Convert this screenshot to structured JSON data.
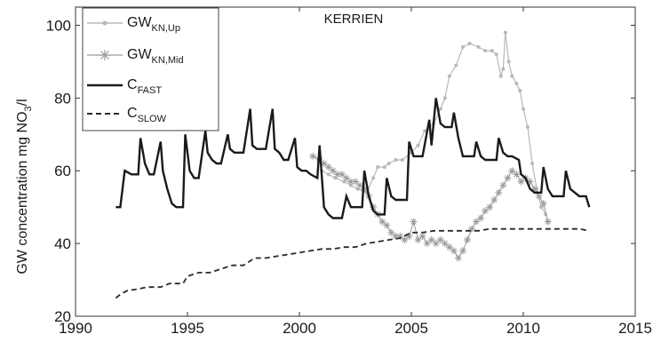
{
  "chart_data": {
    "type": "line",
    "title": "KERRIEN",
    "xlabel": "",
    "ylabel": "GW concentration mg NO3/l",
    "ylabel_parts": {
      "main": "GW concentration mg NO",
      "sub": "3",
      "tail": "/l"
    },
    "xlim": [
      1990,
      2015
    ],
    "ylim": [
      20,
      105
    ],
    "x_ticks": [
      1990,
      1995,
      2000,
      2005,
      2010,
      2015
    ],
    "y_ticks": [
      20,
      40,
      60,
      80,
      100
    ],
    "grid": false,
    "legend_position": "top-left",
    "legend": [
      {
        "base": "GW",
        "sub": "KN,Up"
      },
      {
        "base": "GW",
        "sub": "KN,Mid"
      },
      {
        "base": "C",
        "sub": "FAST"
      },
      {
        "base": "C",
        "sub": "SLOW"
      }
    ],
    "colors": {
      "gw_up": "#b8b8b8",
      "gw_mid": "#9a9a9a",
      "c_fast": "#1a1a1a",
      "c_slow": "#2a2a2a",
      "axis": "#333333"
    },
    "series": [
      {
        "key": "gw_up",
        "style": "dot-line",
        "x": [
          2001.0,
          2001.3,
          2001.6,
          2002.0,
          2002.3,
          2002.6,
          2003.0,
          2003.3,
          2003.5,
          2003.8,
          2004.0,
          2004.3,
          2004.6,
          2005.0,
          2005.3,
          2005.6,
          2006.0,
          2006.3,
          2006.5,
          2006.7,
          2007.0,
          2007.3,
          2007.6,
          2008.0,
          2008.3,
          2008.6,
          2008.8,
          2009.0,
          2009.1,
          2009.2,
          2009.35,
          2009.5,
          2009.7,
          2009.85,
          2010.0,
          2010.2,
          2010.4,
          2010.6,
          2010.8,
          2011.0
        ],
        "y": [
          60,
          59,
          58,
          57,
          56,
          55,
          54,
          58,
          61,
          61,
          62,
          63,
          63,
          65,
          67,
          71,
          73,
          77,
          80,
          86,
          89,
          94,
          95,
          94,
          93,
          93,
          92,
          86,
          88,
          98,
          90,
          86,
          84,
          82,
          77,
          72,
          62,
          55,
          50,
          48
        ]
      },
      {
        "key": "gw_mid",
        "style": "star-line",
        "x": [
          2000.6,
          2000.9,
          2001.1,
          2001.3,
          2001.5,
          2001.7,
          2001.9,
          2002.1,
          2002.3,
          2002.5,
          2002.7,
          2002.9,
          2003.1,
          2003.3,
          2003.5,
          2003.7,
          2003.9,
          2004.1,
          2004.3,
          2004.5,
          2004.7,
          2004.9,
          2005.1,
          2005.3,
          2005.5,
          2005.7,
          2005.9,
          2006.1,
          2006.3,
          2006.5,
          2006.7,
          2006.9,
          2007.1,
          2007.3,
          2007.5,
          2007.7,
          2007.9,
          2008.1,
          2008.3,
          2008.5,
          2008.7,
          2008.9,
          2009.1,
          2009.3,
          2009.5,
          2009.7,
          2009.9,
          2010.1,
          2010.3,
          2010.5,
          2010.7,
          2010.9,
          2011.1
        ],
        "y": [
          64,
          63,
          62,
          61,
          60,
          59,
          59,
          58,
          57,
          57,
          56,
          55,
          53,
          50,
          48,
          46,
          45,
          43,
          42,
          42,
          41,
          42,
          46,
          41,
          42,
          40,
          41,
          40,
          41,
          40,
          39,
          38,
          36,
          38,
          41,
          44,
          46,
          47,
          49,
          50,
          52,
          54,
          56,
          58,
          60,
          59,
          57,
          58,
          57,
          55,
          53,
          51,
          46
        ]
      },
      {
        "key": "c_fast",
        "style": "solid",
        "x": [
          1991.8,
          1992.0,
          1992.2,
          1992.5,
          1992.8,
          1992.9,
          1993.1,
          1993.3,
          1993.5,
          1993.8,
          1993.9,
          1994.1,
          1994.3,
          1994.5,
          1994.8,
          1994.9,
          1995.1,
          1995.3,
          1995.5,
          1995.8,
          1995.9,
          1996.1,
          1996.3,
          1996.5,
          1996.8,
          1996.9,
          1997.1,
          1997.3,
          1997.5,
          1997.8,
          1997.9,
          1998.1,
          1998.3,
          1998.5,
          1998.8,
          1998.9,
          1999.1,
          1999.3,
          1999.5,
          1999.8,
          1999.9,
          2000.1,
          2000.3,
          2000.5,
          2000.8,
          2000.9,
          2001.1,
          2001.3,
          2001.5,
          2001.8,
          2001.9,
          2002.1,
          2002.3,
          2002.5,
          2002.8,
          2002.9,
          2003.1,
          2003.3,
          2003.5,
          2003.8,
          2003.9,
          2004.1,
          2004.3,
          2004.5,
          2004.8,
          2004.9,
          2005.1,
          2005.3,
          2005.5,
          2005.8,
          2005.9,
          2006.1,
          2006.3,
          2006.5,
          2006.8,
          2006.9,
          2007.1,
          2007.3,
          2007.5,
          2007.8,
          2007.9,
          2008.1,
          2008.3,
          2008.5,
          2008.8,
          2008.9,
          2009.1,
          2009.3,
          2009.5,
          2009.8,
          2009.9,
          2010.1,
          2010.3,
          2010.5,
          2010.8,
          2010.9,
          2011.1,
          2011.3,
          2011.5,
          2011.8,
          2011.9,
          2012.1,
          2012.3,
          2012.5,
          2012.8,
          2012.95
        ],
        "y": [
          50,
          50,
          60,
          59,
          59,
          69,
          62,
          59,
          59,
          68,
          60,
          55,
          51,
          50,
          50,
          70,
          60,
          58,
          58,
          71,
          65,
          63,
          62,
          62,
          70,
          66,
          65,
          65,
          65,
          77,
          67,
          66,
          66,
          66,
          77,
          66,
          65,
          63,
          63,
          69,
          61,
          60,
          60,
          59,
          58,
          67,
          50,
          48,
          47,
          47,
          47,
          53,
          50,
          50,
          50,
          60,
          53,
          49,
          48,
          48,
          58,
          53,
          52,
          52,
          52,
          68,
          64,
          64,
          64,
          74,
          67,
          80,
          73,
          72,
          72,
          76,
          69,
          64,
          64,
          64,
          68,
          64,
          63,
          63,
          63,
          69,
          65,
          64,
          64,
          63,
          59,
          58,
          55,
          54,
          54,
          61,
          55,
          53,
          53,
          53,
          60,
          55,
          54,
          53,
          53,
          50
        ]
      },
      {
        "key": "c_slow",
        "style": "dashed",
        "x": [
          1991.8,
          1992.0,
          1992.3,
          1992.8,
          1993.2,
          1993.8,
          1994.2,
          1994.8,
          1995.0,
          1995.5,
          1996.0,
          1996.5,
          1997.0,
          1997.5,
          1998.0,
          1998.5,
          1999.0,
          1999.5,
          2000.0,
          2000.5,
          2001.0,
          2001.5,
          2002.0,
          2002.5,
          2003.0,
          2003.5,
          2004.0,
          2004.5,
          2005.0,
          2005.5,
          2006.0,
          2006.5,
          2007.0,
          2007.5,
          2008.0,
          2008.5,
          2009.0,
          2009.5,
          2010.0,
          2010.5,
          2011.0,
          2011.5,
          2012.0,
          2012.5,
          2012.95
        ],
        "y": [
          25,
          26,
          27,
          27.5,
          28,
          28,
          29,
          29,
          31,
          32,
          32,
          33,
          34,
          34,
          36,
          36,
          36.5,
          37,
          37.5,
          38,
          38.5,
          38.5,
          39,
          39,
          40,
          40.5,
          41,
          41.5,
          43,
          43,
          43.5,
          43.5,
          43.5,
          43.5,
          43.5,
          44,
          44,
          44,
          44,
          44,
          44,
          44,
          44,
          44,
          43.5
        ]
      }
    ]
  }
}
